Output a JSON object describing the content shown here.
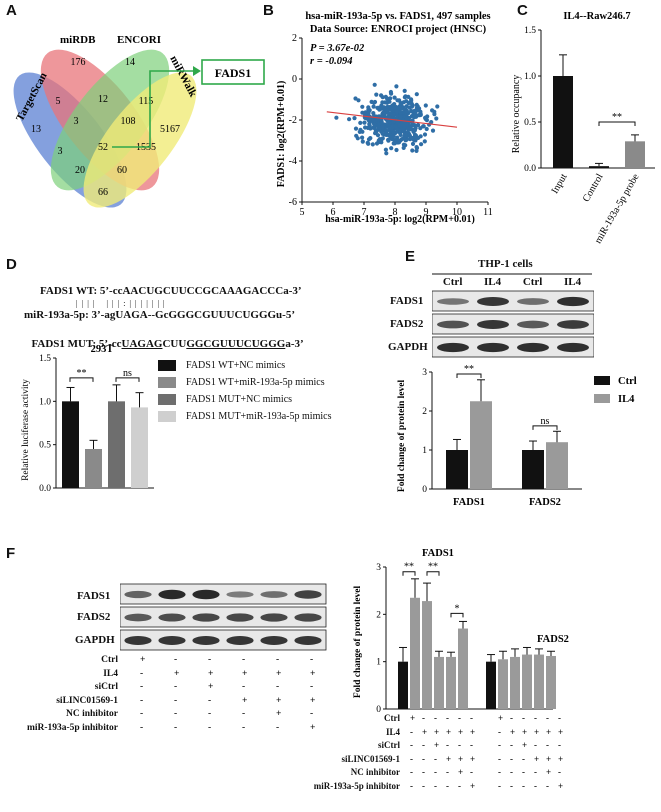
{
  "panels": {
    "A": {
      "letter": "A",
      "sets": [
        "TargetScan",
        "miRDB",
        "ENCORI",
        "miRWalk"
      ],
      "counts": [
        "13",
        "176",
        "14",
        "5167",
        "5",
        "12",
        "115",
        "3",
        "108",
        "1535",
        "3",
        "52",
        "20",
        "60",
        "66"
      ],
      "target_label": "FADS1",
      "colors": {
        "targetscan": "#6f8fd8",
        "mirdb": "#e8747a",
        "encori": "#7ed07a",
        "mirwalk": "#f0eb78",
        "arrow": "#2fa84a"
      }
    },
    "B": {
      "letter": "B",
      "title_line1": "hsa-miR-193a-5p vs. FADS1, 497 samples",
      "title_line2": "Data Source: ENROCI project (HNSC)",
      "p_text": "P = 3.67e-02",
      "r_text": "r = -0.094",
      "xlabel": "hsa-miR-193a-5p: log2(RPM+0.01)",
      "ylabel": "FADS1: log2(RPM+0.01)",
      "point_color": "#2f6ea6",
      "fit_color": "#d94040"
    },
    "C": {
      "letter": "C",
      "title": "IL4--Raw246.7",
      "ylabel": "Relative occupancy",
      "sig": "**"
    },
    "D": {
      "letter": "D",
      "seq_wt": "FADS1 WT: 5’-ccAACUGCUUCCGCAAAGACCCa-3’",
      "seq_pairs": "                  |  |  |  |      |  |  |  :  |  |  |  |  |  |  |",
      "seq_mir": "miR-193a-5p: 3’-agUAGA--GcGGGCGUUUCUGGGu-5’",
      "seq_mut_prefix": "FADS1 MUT: 5’-cc",
      "seq_mut_u1": "UAGAG",
      "seq_mut_mid": "CUU",
      "seq_mut_u2": "GGCGUUUCUGGG",
      "seq_mut_suffix": "a-3’",
      "chart_title": "293T",
      "ylabel": "Relative luciferase activity",
      "sig1": "**",
      "sig2": "ns",
      "legend": [
        {
          "label": "FADS1 WT+NC mimics",
          "color": "#111111"
        },
        {
          "label": "FADS1 WT+miR-193a-5p mimics",
          "color": "#8a8a8a"
        },
        {
          "label": "FADS1 MUT+NC mimics",
          "color": "#6e6e6e"
        },
        {
          "label": "FADS1 MUT+miR-193a-5p mimics",
          "color": "#cfcfcf"
        }
      ]
    },
    "E": {
      "letter": "E",
      "cell_line": "THP-1 cells",
      "lane_labels": [
        "Ctrl",
        "IL4",
        "Ctrl",
        "IL4"
      ],
      "blot_rows": [
        "FADS1",
        "FADS2",
        "GAPDH"
      ],
      "ylabel": "Fold change of protein level",
      "sig1": "**",
      "sig2": "ns",
      "legend": [
        {
          "label": "Ctrl",
          "color": "#111111"
        },
        {
          "label": "IL4",
          "color": "#9a9a9a"
        }
      ]
    },
    "F": {
      "letter": "F",
      "blot_rows": [
        "FADS1",
        "FADS2",
        "GAPDH"
      ],
      "conditions": [
        {
          "label": "Ctrl",
          "marks": [
            "+",
            "-",
            "-",
            "-",
            "-",
            "-"
          ]
        },
        {
          "label": "IL4",
          "marks": [
            "-",
            "+",
            "+",
            "+",
            "+",
            "+"
          ]
        },
        {
          "label": "siCtrl",
          "marks": [
            "-",
            "-",
            "+",
            "-",
            "-",
            "-"
          ]
        },
        {
          "label": "siLINC01569-1",
          "marks": [
            "-",
            "-",
            "-",
            "+",
            "+",
            "+"
          ]
        },
        {
          "label": "NC inhibitor",
          "marks": [
            "-",
            "-",
            "-",
            "-",
            "+",
            "-"
          ]
        },
        {
          "label": "miR-193a-5p inhibitor",
          "marks": [
            "-",
            "-",
            "-",
            "-",
            "-",
            "+"
          ]
        }
      ],
      "ylabel": "Fold change of protein level",
      "group1": "FADS1",
      "group2": "FADS2",
      "sigs": [
        "**",
        "**",
        "*"
      ]
    }
  },
  "chart_data": [
    {
      "type": "scatter",
      "title": "hsa-miR-193a-5p vs. FADS1, 497 samples",
      "subtitle": "Data Source: ENROCI project (HNSC)",
      "xlabel": "hsa-miR-193a-5p: log2(RPM+0.01)",
      "ylabel": "FADS1: log2(RPM+0.01)",
      "xlim": [
        5,
        11
      ],
      "ylim": [
        -6,
        2
      ],
      "xticks": [
        5,
        6,
        7,
        8,
        9,
        10,
        11
      ],
      "yticks": [
        -6,
        -4,
        -2,
        0,
        2
      ],
      "n_points": 497,
      "x_center": 8.0,
      "y_center": -2.1,
      "fit_line": {
        "x": [
          5.8,
          10
        ],
        "y": [
          -1.6,
          -2.35
        ]
      },
      "annotations": [
        "P = 3.67e-02",
        "r = -0.094"
      ]
    },
    {
      "type": "bar",
      "title": "IL4--Raw246.7",
      "categories": [
        "Input",
        "Control",
        "miR-193a-5p probe"
      ],
      "values": [
        1.0,
        0.02,
        0.29
      ],
      "errors": [
        0.23,
        0.03,
        0.07
      ],
      "ylabel": "Relative occupancy",
      "ylim": [
        0,
        1.5
      ],
      "yticks": [
        0.0,
        0.5,
        1.0,
        1.5
      ]
    },
    {
      "type": "bar",
      "title": "293T",
      "categories": [
        "FADS1 WT+NC mimics",
        "FADS1 WT+miR-193a-5p mimics",
        "FADS1 MUT+NC mimics",
        "FADS1 MUT+miR-193a-5p mimics"
      ],
      "values": [
        1.0,
        0.45,
        1.0,
        0.93
      ],
      "errors": [
        0.16,
        0.1,
        0.19,
        0.17
      ],
      "ylabel": "Relative luciferase activity",
      "ylim": [
        0,
        1.5
      ],
      "yticks": [
        0.0,
        0.5,
        1.0,
        1.5
      ]
    },
    {
      "type": "bar",
      "categories": [
        "FADS1",
        "FADS2"
      ],
      "series": [
        {
          "name": "Ctrl",
          "values": [
            1.0,
            1.0
          ],
          "errors": [
            0.27,
            0.23
          ]
        },
        {
          "name": "IL4",
          "values": [
            2.25,
            1.2
          ],
          "errors": [
            0.55,
            0.28
          ]
        }
      ],
      "ylabel": "Fold change of protein level",
      "ylim": [
        0,
        3
      ],
      "yticks": [
        0,
        1,
        2,
        3
      ]
    },
    {
      "type": "bar",
      "categories": [
        "FADS1",
        "FADS2"
      ],
      "series_per_group": 6,
      "values": [
        [
          1.0,
          2.35,
          2.28,
          1.1,
          1.1,
          1.7
        ],
        [
          1.0,
          1.05,
          1.1,
          1.15,
          1.15,
          1.12
        ]
      ],
      "errors": [
        [
          0.3,
          0.4,
          0.38,
          0.12,
          0.1,
          0.15
        ],
        [
          0.15,
          0.17,
          0.17,
          0.15,
          0.12,
          0.1
        ]
      ],
      "ylabel": "Fold change of protein level",
      "ylim": [
        0,
        3
      ],
      "yticks": [
        0,
        1,
        2,
        3
      ]
    }
  ]
}
